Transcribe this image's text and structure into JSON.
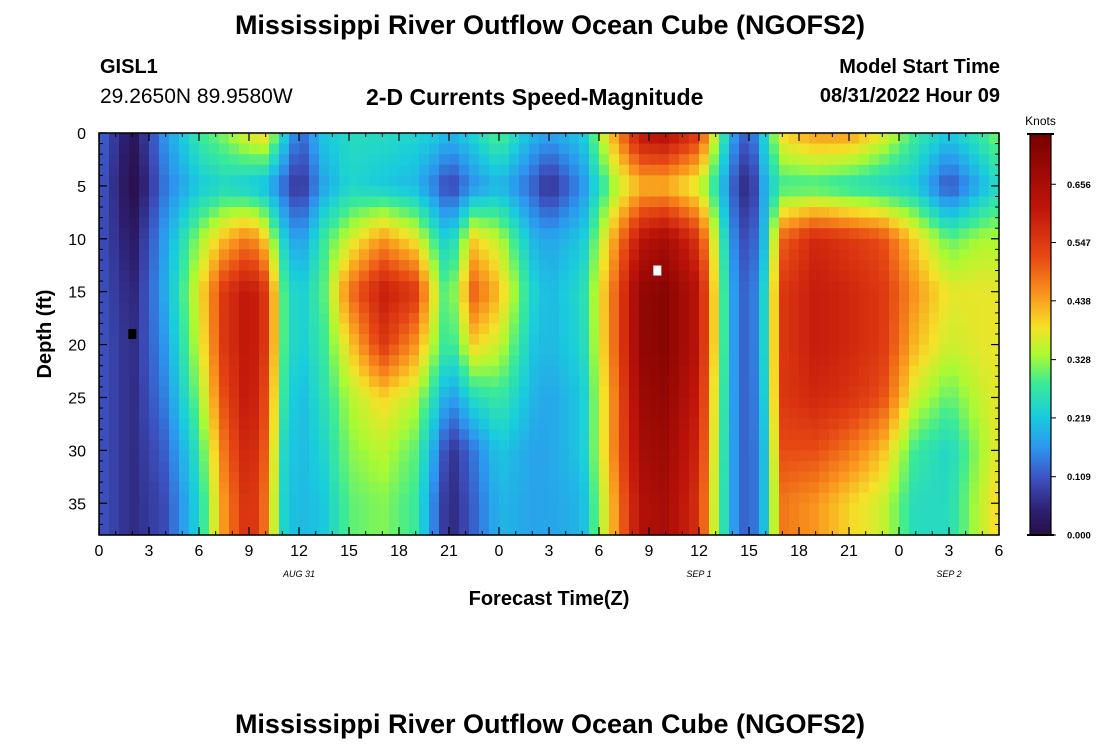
{
  "header": {
    "title": "Mississippi River Outflow Ocean Cube (NGOFS2)",
    "station": "GISL1",
    "coords": "29.2650N  89.9580W",
    "subtitle": "2-D Currents Speed-Magnitude",
    "start_label": "Model Start Time",
    "start_value": "08/31/2022 Hour 09"
  },
  "footer": {
    "title": "Mississippi River Outflow Ocean Cube (NGOFS2)"
  },
  "chart_data": {
    "type": "heatmap",
    "title": "2-D Currents Speed-Magnitude",
    "xlabel": "Forecast Time(Z)",
    "ylabel": "Depth (ft)",
    "x_tick_labels": [
      "0",
      "3",
      "6",
      "9",
      "12",
      "15",
      "18",
      "21",
      "0",
      "3",
      "6",
      "9",
      "12",
      "15",
      "18",
      "21",
      "0",
      "3",
      "6"
    ],
    "date_labels": [
      {
        "text": "AUG 31",
        "x": 12
      },
      {
        "text": "SEP 1",
        "x": 36
      },
      {
        "text": "SEP 2",
        "x": 51
      }
    ],
    "xlim": [
      0,
      54
    ],
    "y_ticks": [
      0,
      5,
      10,
      15,
      20,
      25,
      30,
      35
    ],
    "ylim": [
      0,
      38
    ],
    "y_inverted": true,
    "colorbar": {
      "label": "Knots",
      "ticks": [
        "0.000",
        "0.109",
        "0.219",
        "0.328",
        "0.438",
        "0.547",
        "0.656"
      ],
      "min": 0,
      "max": 0.75
    },
    "markers": [
      {
        "x": 2,
        "y": 19,
        "color": "#000000"
      },
      {
        "x": 33.5,
        "y": 13,
        "color": "#ffffff"
      }
    ],
    "columns": [
      {
        "x": 0,
        "speed": [
          0.13,
          0.12,
          0.11,
          0.11,
          0.11,
          0.11,
          0.11,
          0.11
        ]
      },
      {
        "x": 2,
        "speed": [
          0.02,
          0.0,
          0.03,
          0.05,
          0.06,
          0.06,
          0.06,
          0.06
        ]
      },
      {
        "x": 4,
        "speed": [
          0.17,
          0.14,
          0.18,
          0.19,
          0.17,
          0.15,
          0.12,
          0.1
        ]
      },
      {
        "x": 6,
        "speed": [
          0.28,
          0.22,
          0.33,
          0.38,
          0.36,
          0.32,
          0.27,
          0.24
        ]
      },
      {
        "x": 7.5,
        "speed": [
          0.32,
          0.24,
          0.42,
          0.55,
          0.55,
          0.52,
          0.48,
          0.45
        ]
      },
      {
        "x": 9,
        "speed": [
          0.38,
          0.22,
          0.48,
          0.62,
          0.62,
          0.62,
          0.6,
          0.58
        ]
      },
      {
        "x": 10,
        "speed": [
          0.4,
          0.2,
          0.4,
          0.55,
          0.55,
          0.52,
          0.5,
          0.48
        ]
      },
      {
        "x": 11,
        "speed": [
          0.25,
          0.13,
          0.24,
          0.3,
          0.3,
          0.28,
          0.25,
          0.24
        ]
      },
      {
        "x": 12,
        "speed": [
          0.12,
          0.06,
          0.16,
          0.22,
          0.22,
          0.2,
          0.2,
          0.2
        ]
      },
      {
        "x": 13.5,
        "speed": [
          0.22,
          0.18,
          0.28,
          0.3,
          0.28,
          0.26,
          0.24,
          0.22
        ]
      },
      {
        "x": 15,
        "speed": [
          0.25,
          0.24,
          0.36,
          0.48,
          0.4,
          0.34,
          0.32,
          0.3
        ]
      },
      {
        "x": 17,
        "speed": [
          0.25,
          0.22,
          0.45,
          0.6,
          0.55,
          0.4,
          0.35,
          0.32
        ]
      },
      {
        "x": 19,
        "speed": [
          0.24,
          0.2,
          0.38,
          0.55,
          0.45,
          0.35,
          0.3,
          0.28
        ]
      },
      {
        "x": 20.5,
        "speed": [
          0.22,
          0.12,
          0.25,
          0.32,
          0.3,
          0.22,
          0.14,
          0.1
        ]
      },
      {
        "x": 21,
        "speed": [
          0.2,
          0.08,
          0.22,
          0.28,
          0.26,
          0.16,
          0.06,
          0.05
        ]
      },
      {
        "x": 22.5,
        "speed": [
          0.24,
          0.16,
          0.4,
          0.5,
          0.4,
          0.25,
          0.14,
          0.12
        ]
      },
      {
        "x": 24,
        "speed": [
          0.3,
          0.2,
          0.35,
          0.42,
          0.36,
          0.28,
          0.22,
          0.2
        ]
      },
      {
        "x": 26,
        "speed": [
          0.2,
          0.12,
          0.2,
          0.24,
          0.22,
          0.2,
          0.18,
          0.18
        ]
      },
      {
        "x": 27,
        "speed": [
          0.18,
          0.06,
          0.18,
          0.2,
          0.2,
          0.18,
          0.18,
          0.18
        ]
      },
      {
        "x": 29,
        "speed": [
          0.22,
          0.16,
          0.22,
          0.25,
          0.24,
          0.22,
          0.22,
          0.2
        ]
      },
      {
        "x": 31,
        "speed": [
          0.45,
          0.34,
          0.45,
          0.5,
          0.5,
          0.48,
          0.48,
          0.45
        ]
      },
      {
        "x": 32.5,
        "speed": [
          0.62,
          0.42,
          0.62,
          0.7,
          0.7,
          0.68,
          0.66,
          0.64
        ]
      },
      {
        "x": 34,
        "speed": [
          0.64,
          0.42,
          0.66,
          0.72,
          0.72,
          0.7,
          0.68,
          0.66
        ]
      },
      {
        "x": 36,
        "speed": [
          0.55,
          0.36,
          0.55,
          0.62,
          0.62,
          0.6,
          0.58,
          0.56
        ]
      },
      {
        "x": 37,
        "speed": [
          0.35,
          0.26,
          0.35,
          0.38,
          0.38,
          0.36,
          0.35,
          0.34
        ]
      },
      {
        "x": 38,
        "speed": [
          0.18,
          0.12,
          0.16,
          0.18,
          0.18,
          0.18,
          0.18,
          0.18
        ]
      },
      {
        "x": 39,
        "speed": [
          0.1,
          0.04,
          0.08,
          0.1,
          0.1,
          0.1,
          0.1,
          0.1
        ]
      },
      {
        "x": 40,
        "speed": [
          0.25,
          0.2,
          0.22,
          0.25,
          0.25,
          0.24,
          0.22,
          0.22
        ]
      },
      {
        "x": 41,
        "speed": [
          0.4,
          0.28,
          0.5,
          0.55,
          0.55,
          0.55,
          0.52,
          0.48
        ]
      },
      {
        "x": 43,
        "speed": [
          0.45,
          0.28,
          0.58,
          0.6,
          0.6,
          0.58,
          0.52,
          0.45
        ]
      },
      {
        "x": 45,
        "speed": [
          0.45,
          0.26,
          0.55,
          0.58,
          0.58,
          0.56,
          0.48,
          0.4
        ]
      },
      {
        "x": 47,
        "speed": [
          0.38,
          0.24,
          0.52,
          0.55,
          0.55,
          0.52,
          0.42,
          0.36
        ]
      },
      {
        "x": 49,
        "speed": [
          0.28,
          0.22,
          0.4,
          0.45,
          0.42,
          0.36,
          0.28,
          0.25
        ]
      },
      {
        "x": 51,
        "speed": [
          0.22,
          0.1,
          0.3,
          0.38,
          0.36,
          0.3,
          0.24,
          0.25
        ]
      },
      {
        "x": 53,
        "speed": [
          0.28,
          0.2,
          0.34,
          0.38,
          0.38,
          0.36,
          0.34,
          0.36
        ]
      },
      {
        "x": 54,
        "speed": [
          0.32,
          0.25,
          0.34,
          0.38,
          0.38,
          0.38,
          0.38,
          0.4
        ]
      }
    ]
  }
}
